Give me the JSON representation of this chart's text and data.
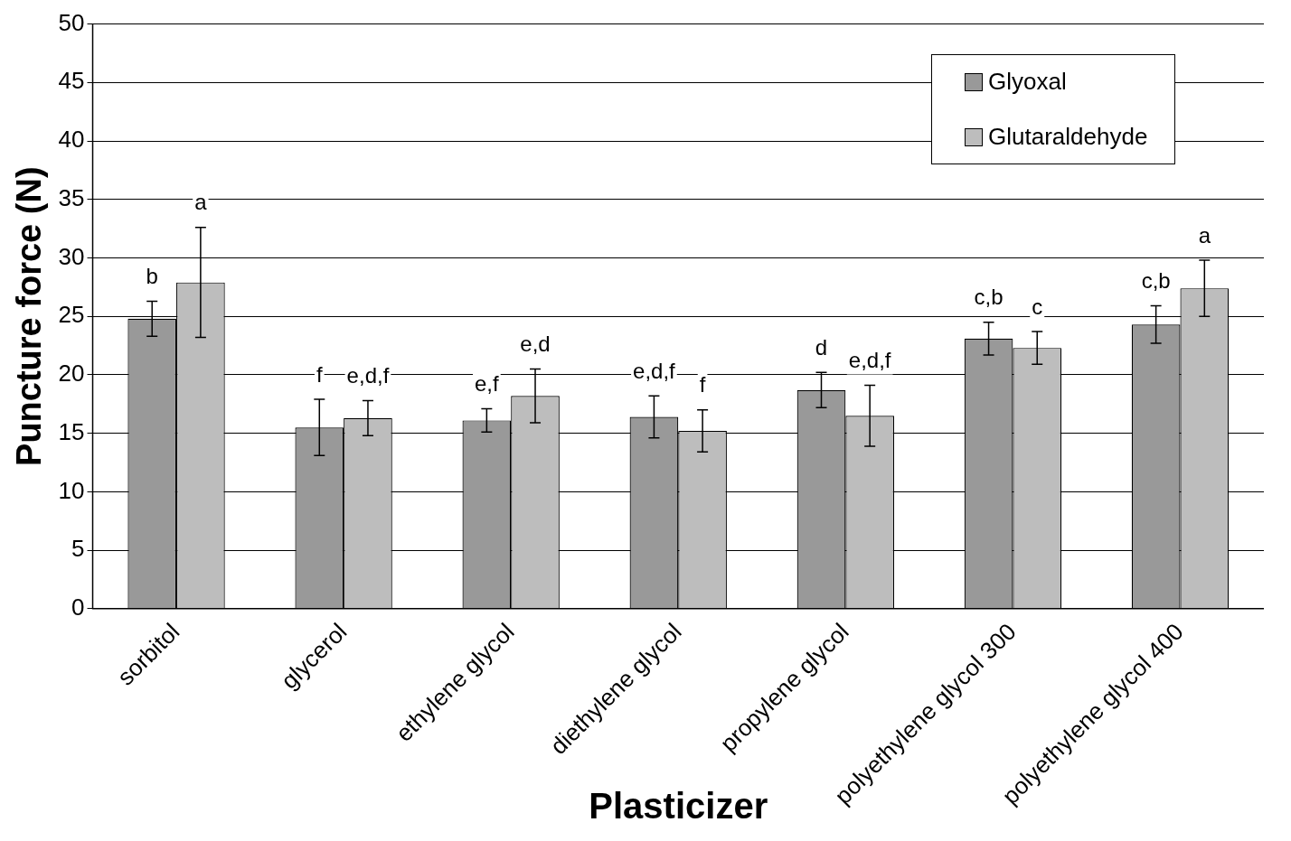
{
  "chart_data": {
    "type": "bar",
    "xlabel": "Plasticizer",
    "ylabel": "Puncture force (N)",
    "categories": [
      "sorbitol",
      "glycerol",
      "ethylene glycol",
      "diethylene glycol",
      "propylene glycol",
      "polyethylene glycol 300",
      "polyethylene glycol 400"
    ],
    "series": [
      {
        "name": "Glyoxal",
        "color": "#999999",
        "values": [
          24.8,
          15.5,
          16.1,
          16.4,
          18.7,
          23.1,
          24.3
        ],
        "errors": [
          1.5,
          2.4,
          1,
          1.8,
          1.5,
          1.4,
          1.6
        ],
        "value_labels": [
          "b",
          "f",
          "e,f",
          "e,d,f",
          "d",
          "c,b",
          "c,b"
        ]
      },
      {
        "name": "Glutaraldehyde",
        "color": "#bdbdbd",
        "values": [
          27.9,
          16.3,
          18.2,
          15.2,
          16.5,
          22.3,
          27.4
        ],
        "errors": [
          4.7,
          1.5,
          2.3,
          1.8,
          2.6,
          1.4,
          2.4
        ],
        "value_labels": [
          "a",
          "e,d,f",
          "e,d",
          "f",
          "e,d,f",
          "c",
          "a"
        ]
      }
    ],
    "ylim": [
      0,
      50
    ],
    "yticks": [
      0,
      5,
      10,
      15,
      20,
      25,
      30,
      35,
      40,
      45,
      50
    ],
    "grid": "y",
    "legend": "top right"
  }
}
